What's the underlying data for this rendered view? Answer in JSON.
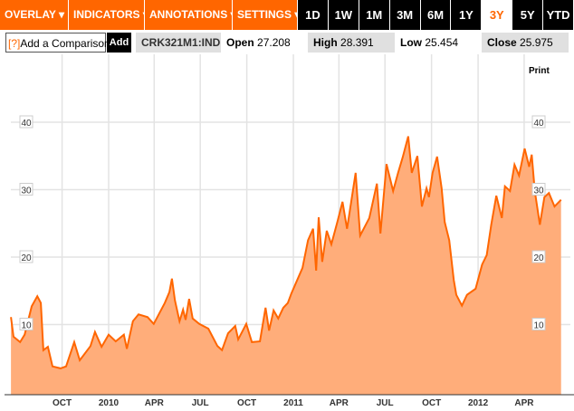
{
  "toolbar": {
    "tabs": [
      "OVERLAY ▾",
      "INDICATORS ▾",
      "ANNOTATIONS ▾",
      "SETTINGS ▾"
    ],
    "ranges": [
      "1D",
      "1W",
      "1M",
      "3M",
      "6M",
      "1Y",
      "3Y",
      "5Y",
      "YTD"
    ],
    "active_range": "3Y"
  },
  "quote": {
    "compare_icon": "[?]",
    "compare_label": "Add a Comparison",
    "add_label": "Add",
    "ticker": "CRK321M1:IND",
    "open_label": "Open",
    "open": "27.208",
    "high_label": "High",
    "high": "28.391",
    "low_label": "Low",
    "low": "25.454",
    "close_label": "Close",
    "close": "25.975"
  },
  "print_label": "Print",
  "colors": {
    "accent": "#ff6600",
    "fill": "#ffad7a",
    "line": "#ff6600"
  },
  "chart_data": {
    "type": "area",
    "ylim": [
      0,
      40
    ],
    "yticks": [
      10,
      20,
      30,
      40
    ],
    "grid": true,
    "xticks": [
      {
        "date": "2009-10-01",
        "label": "OCT"
      },
      {
        "date": "2010-01-01",
        "label": "2010"
      },
      {
        "date": "2010-04-01",
        "label": "APR"
      },
      {
        "date": "2010-07-01",
        "label": "JUL"
      },
      {
        "date": "2010-10-01",
        "label": "OCT"
      },
      {
        "date": "2011-01-01",
        "label": "2011"
      },
      {
        "date": "2011-04-01",
        "label": "APR"
      },
      {
        "date": "2011-07-01",
        "label": "JUL"
      },
      {
        "date": "2011-10-01",
        "label": "OCT"
      },
      {
        "date": "2012-01-01",
        "label": "2012"
      },
      {
        "date": "2012-04-01",
        "label": "APR"
      }
    ],
    "points": [
      [
        "2009-06-22",
        11.1
      ],
      [
        "2009-06-27",
        8.2
      ],
      [
        "2009-07-10",
        7.4
      ],
      [
        "2009-07-19",
        8.5
      ],
      [
        "2009-08-02",
        12.7
      ],
      [
        "2009-08-13",
        14.2
      ],
      [
        "2009-08-20",
        13.2
      ],
      [
        "2009-08-25",
        6.2
      ],
      [
        "2009-09-03",
        6.7
      ],
      [
        "2009-09-12",
        3.8
      ],
      [
        "2009-09-28",
        3.5
      ],
      [
        "2009-10-09",
        3.8
      ],
      [
        "2009-10-25",
        7.4
      ],
      [
        "2009-11-05",
        4.7
      ],
      [
        "2009-11-26",
        6.8
      ],
      [
        "2009-12-05",
        8.9
      ],
      [
        "2009-12-18",
        6.7
      ],
      [
        "2010-01-01",
        8.5
      ],
      [
        "2010-01-15",
        7.5
      ],
      [
        "2010-01-31",
        8.5
      ],
      [
        "2010-02-06",
        6.4
      ],
      [
        "2010-02-18",
        10.5
      ],
      [
        "2010-03-01",
        11.5
      ],
      [
        "2010-03-19",
        11.1
      ],
      [
        "2010-03-31",
        10.1
      ],
      [
        "2010-04-22",
        13.2
      ],
      [
        "2010-05-01",
        14.8
      ],
      [
        "2010-05-06",
        16.8
      ],
      [
        "2010-05-12",
        13.6
      ],
      [
        "2010-05-21",
        10.5
      ],
      [
        "2010-05-28",
        12.2
      ],
      [
        "2010-06-02",
        10.7
      ],
      [
        "2010-06-09",
        13.8
      ],
      [
        "2010-06-16",
        10.9
      ],
      [
        "2010-06-29",
        10.1
      ],
      [
        "2010-07-17",
        9.4
      ],
      [
        "2010-08-04",
        6.8
      ],
      [
        "2010-08-13",
        6.2
      ],
      [
        "2010-08-25",
        8.7
      ],
      [
        "2010-09-08",
        9.8
      ],
      [
        "2010-09-14",
        7.8
      ],
      [
        "2010-09-30",
        10.1
      ],
      [
        "2010-10-11",
        7.4
      ],
      [
        "2010-10-27",
        7.5
      ],
      [
        "2010-11-07",
        12.5
      ],
      [
        "2010-11-14",
        9.1
      ],
      [
        "2010-11-23",
        12.1
      ],
      [
        "2010-12-02",
        10.9
      ],
      [
        "2010-12-12",
        12.5
      ],
      [
        "2010-12-21",
        13.2
      ],
      [
        "2010-12-28",
        14.6
      ],
      [
        "2011-01-19",
        18.4
      ],
      [
        "2011-01-30",
        22.5
      ],
      [
        "2011-02-09",
        24.2
      ],
      [
        "2011-02-15",
        18.0
      ],
      [
        "2011-02-20",
        25.9
      ],
      [
        "2011-02-27",
        19.3
      ],
      [
        "2011-03-08",
        23.9
      ],
      [
        "2011-03-17",
        21.9
      ],
      [
        "2011-03-30",
        25.5
      ],
      [
        "2011-04-08",
        28.2
      ],
      [
        "2011-04-17",
        24.2
      ],
      [
        "2011-04-22",
        26.6
      ],
      [
        "2011-05-04",
        32.5
      ],
      [
        "2011-05-13",
        23.2
      ],
      [
        "2011-05-31",
        25.8
      ],
      [
        "2011-06-15",
        30.9
      ],
      [
        "2011-06-22",
        23.5
      ],
      [
        "2011-07-04",
        33.8
      ],
      [
        "2011-07-17",
        29.8
      ],
      [
        "2011-07-27",
        32.5
      ],
      [
        "2011-08-05",
        34.8
      ],
      [
        "2011-08-16",
        37.9
      ],
      [
        "2011-08-23",
        32.5
      ],
      [
        "2011-09-03",
        35.0
      ],
      [
        "2011-09-12",
        27.5
      ],
      [
        "2011-09-21",
        30.2
      ],
      [
        "2011-09-26",
        28.9
      ],
      [
        "2011-10-03",
        32.5
      ],
      [
        "2011-10-12",
        34.9
      ],
      [
        "2011-10-21",
        30.2
      ],
      [
        "2011-10-27",
        25.2
      ],
      [
        "2011-11-05",
        22.5
      ],
      [
        "2011-11-14",
        16.6
      ],
      [
        "2011-11-19",
        14.4
      ],
      [
        "2011-11-30",
        12.8
      ],
      [
        "2011-12-10",
        14.4
      ],
      [
        "2011-12-27",
        15.3
      ],
      [
        "2012-01-09",
        18.9
      ],
      [
        "2012-01-18",
        20.3
      ],
      [
        "2012-01-27",
        24.8
      ],
      [
        "2012-02-06",
        29.1
      ],
      [
        "2012-02-17",
        25.8
      ],
      [
        "2012-02-23",
        30.5
      ],
      [
        "2012-03-04",
        29.8
      ],
      [
        "2012-03-13",
        33.7
      ],
      [
        "2012-03-22",
        32.1
      ],
      [
        "2012-04-02",
        36.1
      ],
      [
        "2012-04-11",
        33.4
      ],
      [
        "2012-04-16",
        35.2
      ],
      [
        "2012-04-22",
        29.8
      ],
      [
        "2012-05-02",
        24.8
      ],
      [
        "2012-05-11",
        28.9
      ],
      [
        "2012-05-20",
        29.5
      ],
      [
        "2012-05-31",
        27.5
      ],
      [
        "2012-06-13",
        28.5
      ]
    ]
  }
}
